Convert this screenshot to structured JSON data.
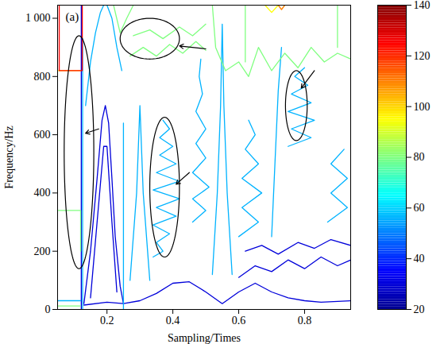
{
  "chart_data": {
    "type": "contour",
    "panel_label": "(a)",
    "x_label": "Sampling/Times",
    "y_label": "Frequency/Hz",
    "xlim": [
      0.05,
      0.94
    ],
    "ylim": [
      0,
      1045
    ],
    "xticks": [
      0.2,
      0.4,
      0.6,
      0.8
    ],
    "yticks": [
      0,
      200,
      400,
      600,
      800,
      {
        "value": 1000,
        "label": "1 000"
      }
    ],
    "colorbar_range": [
      20,
      140
    ],
    "colorbar_ticks": [
      20,
      40,
      60,
      80,
      100,
      120,
      140
    ],
    "contours": [
      {
        "level": 30,
        "points": [
          [
            0.13,
            15
          ],
          [
            0.2,
            25
          ],
          [
            0.25,
            20
          ],
          [
            0.3,
            30
          ],
          [
            0.35,
            55
          ],
          [
            0.4,
            90
          ],
          [
            0.45,
            95
          ],
          [
            0.5,
            60
          ],
          [
            0.55,
            20
          ],
          [
            0.6,
            60
          ],
          [
            0.65,
            90
          ],
          [
            0.7,
            60
          ],
          [
            0.75,
            40
          ],
          [
            0.8,
            30
          ],
          [
            0.85,
            25
          ],
          [
            0.94,
            30
          ]
        ]
      },
      {
        "level": 30,
        "points": [
          [
            0.13,
            20
          ],
          [
            0.15,
            200
          ],
          [
            0.17,
            450
          ],
          [
            0.185,
            650
          ],
          [
            0.195,
            700
          ],
          [
            0.205,
            640
          ],
          [
            0.215,
            450
          ],
          [
            0.225,
            250
          ],
          [
            0.24,
            80
          ],
          [
            0.25,
            20
          ]
        ]
      },
      {
        "level": 30,
        "points": [
          [
            0.15,
            40
          ],
          [
            0.17,
            300
          ],
          [
            0.19,
            560
          ],
          [
            0.2,
            560
          ],
          [
            0.215,
            300
          ],
          [
            0.23,
            60
          ]
        ]
      },
      {
        "level": 30,
        "points": [
          [
            0.6,
            110
          ],
          [
            0.65,
            150
          ],
          [
            0.7,
            130
          ],
          [
            0.75,
            170
          ],
          [
            0.8,
            140
          ],
          [
            0.85,
            180
          ],
          [
            0.9,
            150
          ],
          [
            0.94,
            170
          ]
        ]
      },
      {
        "level": 30,
        "points": [
          [
            0.62,
            200
          ],
          [
            0.67,
            220
          ],
          [
            0.72,
            190
          ],
          [
            0.78,
            230
          ],
          [
            0.83,
            210
          ],
          [
            0.88,
            240
          ],
          [
            0.94,
            220
          ]
        ]
      },
      {
        "level": 30,
        "points": [
          [
            0.122,
            0
          ],
          [
            0.122,
            1045
          ]
        ]
      },
      {
        "level": 56,
        "points": [
          [
            0.126,
            0
          ],
          [
            0.126,
            930
          ]
        ]
      },
      {
        "level": 56,
        "points": [
          [
            0.05,
            30
          ],
          [
            0.12,
            30
          ]
        ]
      },
      {
        "level": 80,
        "points": [
          [
            0.05,
            12
          ],
          [
            0.12,
            12
          ]
        ]
      },
      {
        "level": 80,
        "points": [
          [
            0.12,
            200
          ],
          [
            0.12,
            340
          ],
          [
            0.05,
            340
          ]
        ]
      },
      {
        "level": 95,
        "points": [
          [
            0.05,
            820
          ],
          [
            0.12,
            820
          ]
        ]
      },
      {
        "level": 125,
        "points": [
          [
            0.055,
            1045
          ],
          [
            0.055,
            820
          ],
          [
            0.125,
            820
          ],
          [
            0.125,
            1045
          ]
        ]
      },
      {
        "level": 56,
        "points": [
          [
            0.25,
            0
          ],
          [
            0.25,
            640
          ]
        ]
      },
      {
        "level": 56,
        "points": [
          [
            0.135,
            700
          ],
          [
            0.15,
            850
          ],
          [
            0.165,
            950
          ],
          [
            0.18,
            1020
          ],
          [
            0.19,
            1045
          ]
        ]
      },
      {
        "level": 56,
        "points": [
          [
            0.2,
            1045
          ],
          [
            0.215,
            1000
          ],
          [
            0.23,
            900
          ],
          [
            0.245,
            820
          ]
        ]
      },
      {
        "level": 56,
        "points": [
          [
            0.34,
            180
          ],
          [
            0.37,
            200
          ],
          [
            0.35,
            230
          ],
          [
            0.39,
            260
          ],
          [
            0.34,
            290
          ],
          [
            0.41,
            320
          ],
          [
            0.35,
            350
          ],
          [
            0.42,
            380
          ],
          [
            0.34,
            410
          ],
          [
            0.42,
            440
          ],
          [
            0.35,
            470
          ],
          [
            0.41,
            500
          ],
          [
            0.36,
            530
          ],
          [
            0.4,
            560
          ],
          [
            0.36,
            590
          ],
          [
            0.39,
            620
          ],
          [
            0.37,
            650
          ]
        ]
      },
      {
        "level": 56,
        "points": [
          [
            0.46,
            300
          ],
          [
            0.5,
            340
          ],
          [
            0.46,
            380
          ],
          [
            0.51,
            420
          ],
          [
            0.46,
            470
          ],
          [
            0.5,
            520
          ],
          [
            0.47,
            570
          ],
          [
            0.5,
            620
          ],
          [
            0.47,
            680
          ],
          [
            0.49,
            740
          ],
          [
            0.48,
            800
          ],
          [
            0.485,
            860
          ]
        ]
      },
      {
        "level": 56,
        "points": [
          [
            0.52,
            120
          ],
          [
            0.535,
            400
          ],
          [
            0.545,
            700
          ],
          [
            0.55,
            980
          ],
          [
            0.555,
            700
          ],
          [
            0.565,
            400
          ],
          [
            0.58,
            120
          ]
        ]
      },
      {
        "level": 56,
        "points": [
          [
            0.6,
            250
          ],
          [
            0.66,
            300
          ],
          [
            0.61,
            350
          ],
          [
            0.67,
            400
          ],
          [
            0.61,
            450
          ],
          [
            0.66,
            500
          ],
          [
            0.62,
            550
          ],
          [
            0.65,
            600
          ],
          [
            0.63,
            650
          ]
        ]
      },
      {
        "level": 56,
        "points": [
          [
            0.75,
            560
          ],
          [
            0.82,
            590
          ],
          [
            0.76,
            620
          ],
          [
            0.83,
            650
          ],
          [
            0.75,
            680
          ],
          [
            0.82,
            710
          ],
          [
            0.76,
            740
          ],
          [
            0.81,
            770
          ],
          [
            0.77,
            800
          ],
          [
            0.8,
            830
          ]
        ]
      },
      {
        "level": 56,
        "points": [
          [
            0.87,
            300
          ],
          [
            0.93,
            350
          ],
          [
            0.88,
            400
          ],
          [
            0.93,
            450
          ],
          [
            0.88,
            500
          ],
          [
            0.92,
            550
          ]
        ]
      },
      {
        "level": 56,
        "points": [
          [
            0.7,
            250
          ],
          [
            0.71,
            500
          ],
          [
            0.72,
            750
          ],
          [
            0.73,
            900
          ]
        ]
      },
      {
        "level": 56,
        "points": [
          [
            0.27,
            100
          ],
          [
            0.29,
            400
          ],
          [
            0.3,
            700
          ],
          [
            0.31,
            400
          ],
          [
            0.33,
            100
          ]
        ]
      },
      {
        "level": 80,
        "points": [
          [
            0.27,
            870
          ],
          [
            0.31,
            900
          ],
          [
            0.35,
            870
          ],
          [
            0.39,
            910
          ],
          [
            0.43,
            880
          ],
          [
            0.47,
            920
          ],
          [
            0.5,
            890
          ]
        ]
      },
      {
        "level": 80,
        "points": [
          [
            0.28,
            940
          ],
          [
            0.33,
            960
          ],
          [
            0.37,
            930
          ],
          [
            0.42,
            970
          ],
          [
            0.46,
            940
          ],
          [
            0.5,
            980
          ]
        ]
      },
      {
        "level": 80,
        "points": [
          [
            0.52,
            1045
          ],
          [
            0.53,
            900
          ],
          [
            0.56,
            820
          ],
          [
            0.6,
            850
          ],
          [
            0.63,
            800
          ],
          [
            0.66,
            900
          ],
          [
            0.7,
            820
          ],
          [
            0.74,
            880
          ],
          [
            0.78,
            830
          ],
          [
            0.82,
            900
          ],
          [
            0.86,
            850
          ],
          [
            0.9,
            880
          ],
          [
            0.94,
            860
          ]
        ]
      },
      {
        "level": 80,
        "points": [
          [
            0.22,
            1045
          ],
          [
            0.24,
            950
          ],
          [
            0.26,
            1000
          ],
          [
            0.28,
            1045
          ]
        ]
      },
      {
        "level": 80,
        "points": [
          [
            0.62,
            1045
          ],
          [
            0.62,
            850
          ]
        ]
      },
      {
        "level": 80,
        "points": [
          [
            0.9,
            1045
          ],
          [
            0.9,
            900
          ]
        ]
      },
      {
        "level": 95,
        "points": [
          [
            0.68,
            1045
          ],
          [
            0.7,
            1020
          ],
          [
            0.72,
            1045
          ]
        ]
      },
      {
        "level": 110,
        "points": [
          [
            0.72,
            1045
          ],
          [
            0.73,
            1030
          ],
          [
            0.74,
            1045
          ]
        ]
      }
    ],
    "ellipses": [
      {
        "x": 0.115,
        "y": 540,
        "rx": 0.045,
        "ry": 400
      },
      {
        "x": 0.33,
        "y": 930,
        "rx": 0.09,
        "ry": 70
      },
      {
        "x": 0.375,
        "y": 420,
        "rx": 0.045,
        "ry": 240
      },
      {
        "x": 0.775,
        "y": 700,
        "rx": 0.033,
        "ry": 120
      }
    ],
    "arrows": [
      {
        "x1": 0.175,
        "y1": 620,
        "x2": 0.135,
        "y2": 605
      },
      {
        "x1": 0.5,
        "y1": 895,
        "x2": 0.42,
        "y2": 905
      },
      {
        "x1": 0.45,
        "y1": 470,
        "x2": 0.41,
        "y2": 430
      },
      {
        "x1": 0.83,
        "y1": 820,
        "x2": 0.79,
        "y2": 760
      }
    ]
  }
}
